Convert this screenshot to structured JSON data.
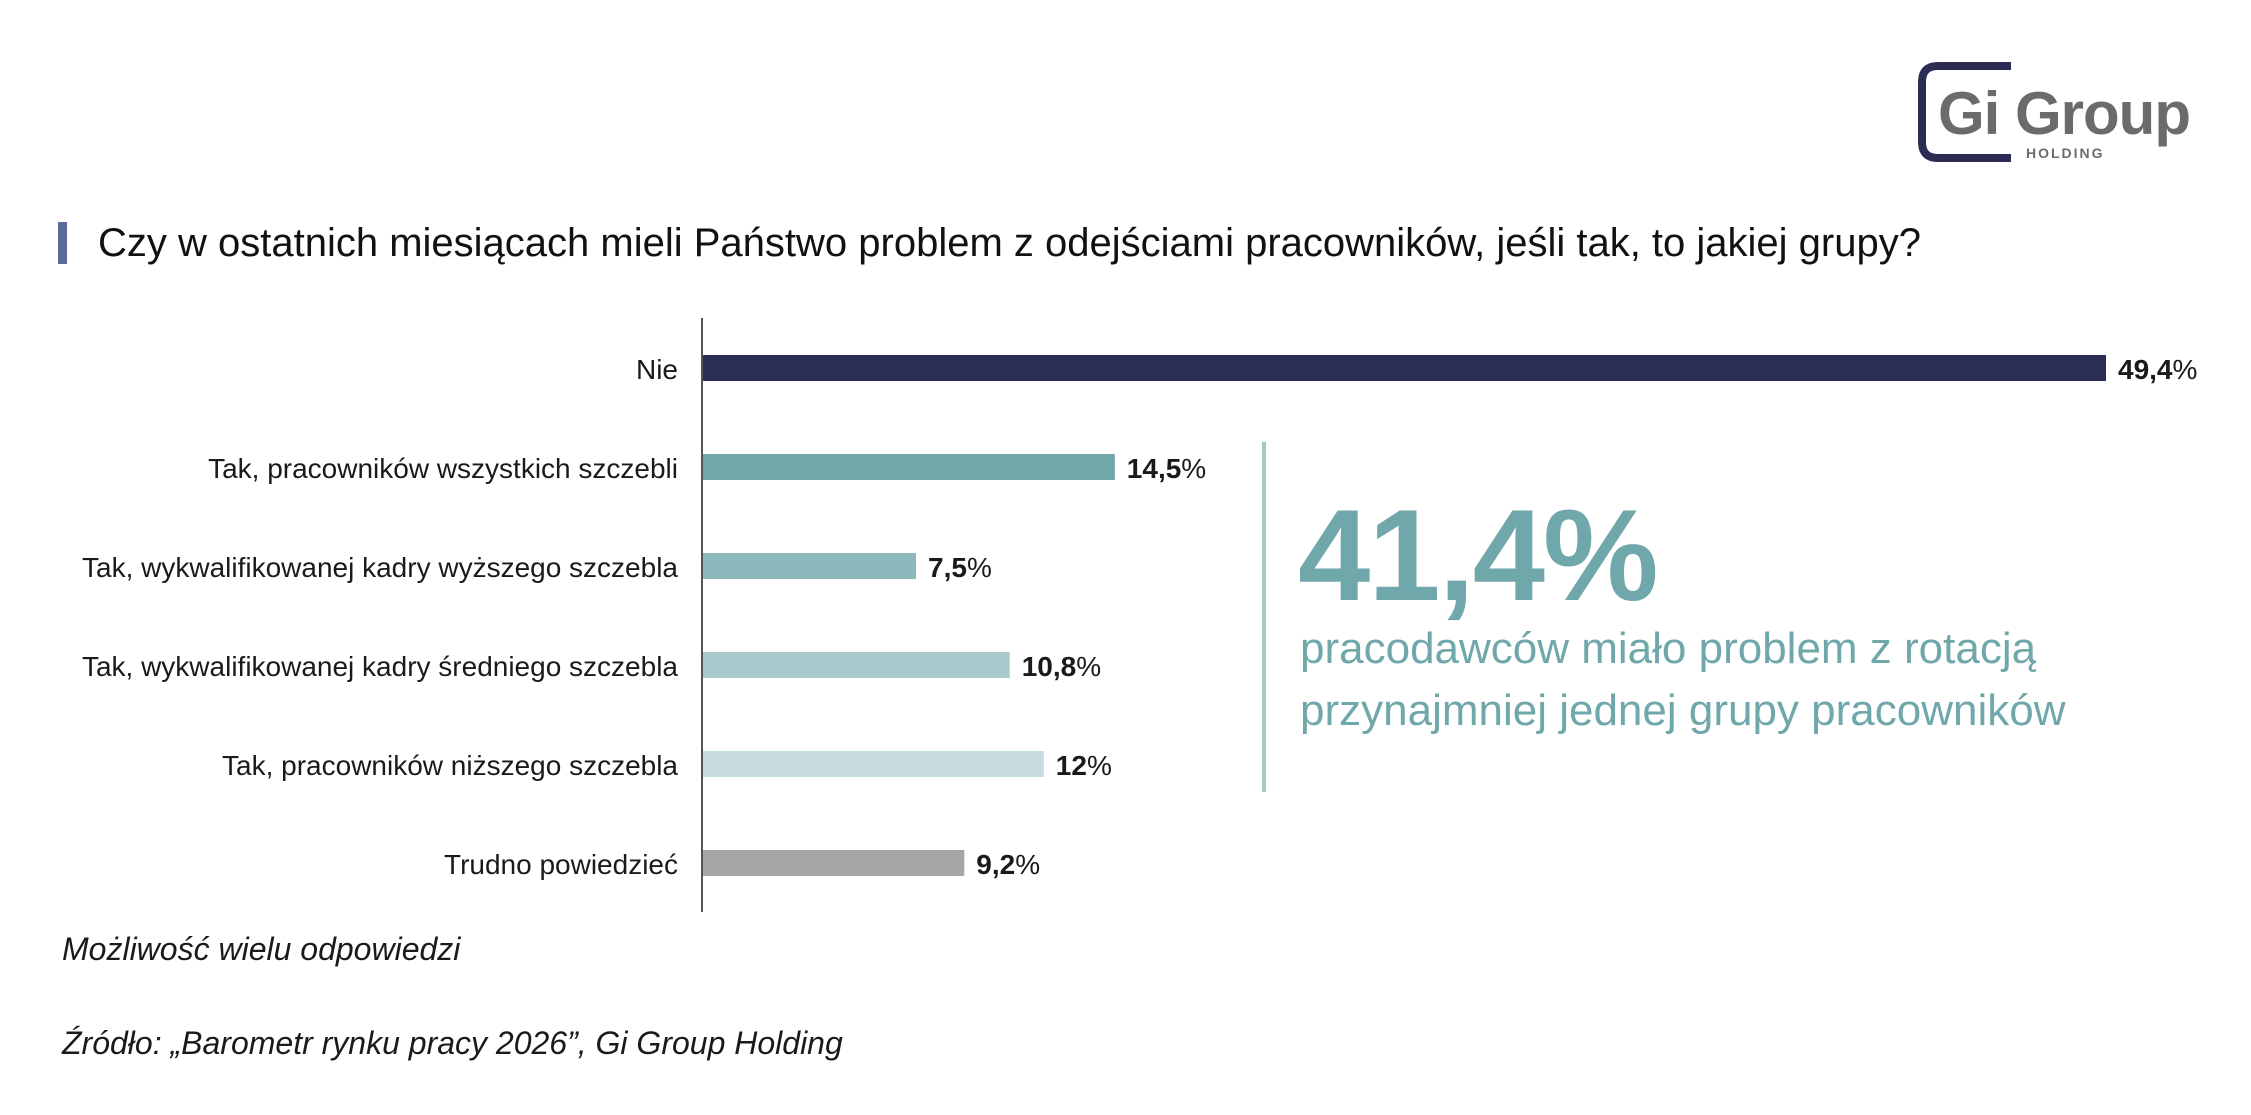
{
  "brand": {
    "logo_main": "Gi Group",
    "logo_sub": "HOLDING",
    "accent_color": "#5a6b9a",
    "logo_bracket_color": "#2b2d55",
    "logo_text_color": "#6b6b6b"
  },
  "title": "Czy w ostatnich miesiącach mieli Państwo problem z odejściami pracowników, jeśli tak, to jakiej grupy?",
  "chart_data": {
    "type": "bar",
    "orientation": "horizontal",
    "categories": [
      "Nie",
      "Tak, pracowników wszystkich szczebli",
      "Tak, wykwalifikowanej kadry wyższego szczebla",
      "Tak, wykwalifikowanej kadry średniego szczebla",
      "Tak, pracowników niższego szczebla",
      "Trudno powiedzieć"
    ],
    "values": [
      49.4,
      14.5,
      7.5,
      10.8,
      12,
      9.2
    ],
    "value_labels": [
      "49,4",
      "14,5",
      "7,5",
      "10,8",
      "12",
      "9,2"
    ],
    "value_suffix": "%",
    "colors": [
      "#2b2d55",
      "#6fa7aa",
      "#8ab8bb",
      "#a9cacc",
      "#c6dcde",
      "#a6a6a6"
    ],
    "xlim": [
      0,
      50
    ],
    "grid": false,
    "legend": "none"
  },
  "callout": {
    "value": "41,4%",
    "text": "pracodawców miało problem z rotacją przynajmniej jednej grupy pracowników",
    "color": "#6fa7aa"
  },
  "footnote": "Możliwość wielu odpowiedzi",
  "source": "Źródło: „Barometr rynku pracy 2026”, Gi Group Holding"
}
